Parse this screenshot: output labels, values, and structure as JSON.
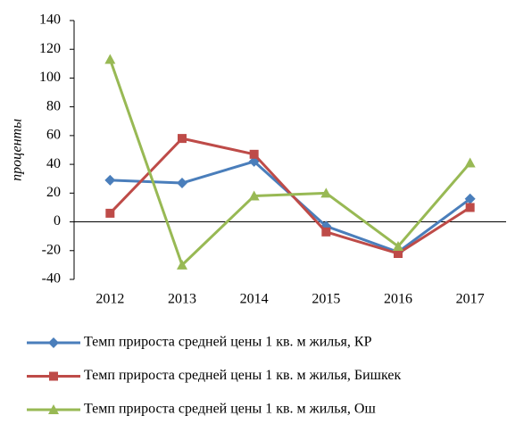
{
  "chart_data": {
    "type": "line",
    "ylabel": "проценты",
    "categories": [
      "2012",
      "2013",
      "2014",
      "2015",
      "2016",
      "2017"
    ],
    "series": [
      {
        "name": "Темп прироста средней цены 1 кв. м жилья, КР",
        "color": "#4a7ebb",
        "marker": "diamond",
        "values": [
          29,
          27,
          42,
          -3,
          -21,
          16
        ]
      },
      {
        "name": "Темп прироста средней цены 1 кв. м жилья, Бишкек",
        "color": "#be4b48",
        "marker": "square",
        "values": [
          6,
          58,
          47,
          -7,
          -22,
          10
        ]
      },
      {
        "name": "Темп прироста средней цены 1 кв. м жилья, Ош",
        "color": "#98b954",
        "marker": "triangle",
        "values": [
          113,
          -30,
          18,
          20,
          -17,
          41
        ]
      }
    ],
    "ylim": [
      -40,
      140
    ],
    "yticks": [
      -40,
      -20,
      0,
      20,
      40,
      60,
      80,
      100,
      120,
      140
    ],
    "legend": "bottom"
  }
}
